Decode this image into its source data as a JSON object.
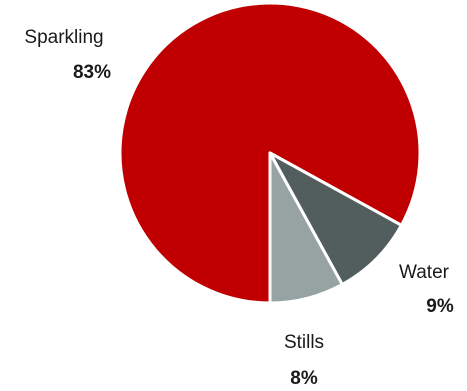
{
  "chart_data": {
    "type": "pie",
    "title": "",
    "slices": [
      {
        "label": "Sparkling",
        "value": 83,
        "display": "83%",
        "color": "#c00000"
      },
      {
        "label": "Water",
        "value": 9,
        "display": "9%",
        "color": "#525e5e"
      },
      {
        "label": "Stills",
        "value": 8,
        "display": "8%",
        "color": "#97a3a3"
      }
    ],
    "legend": "none",
    "separator_color": "#ffffff"
  }
}
